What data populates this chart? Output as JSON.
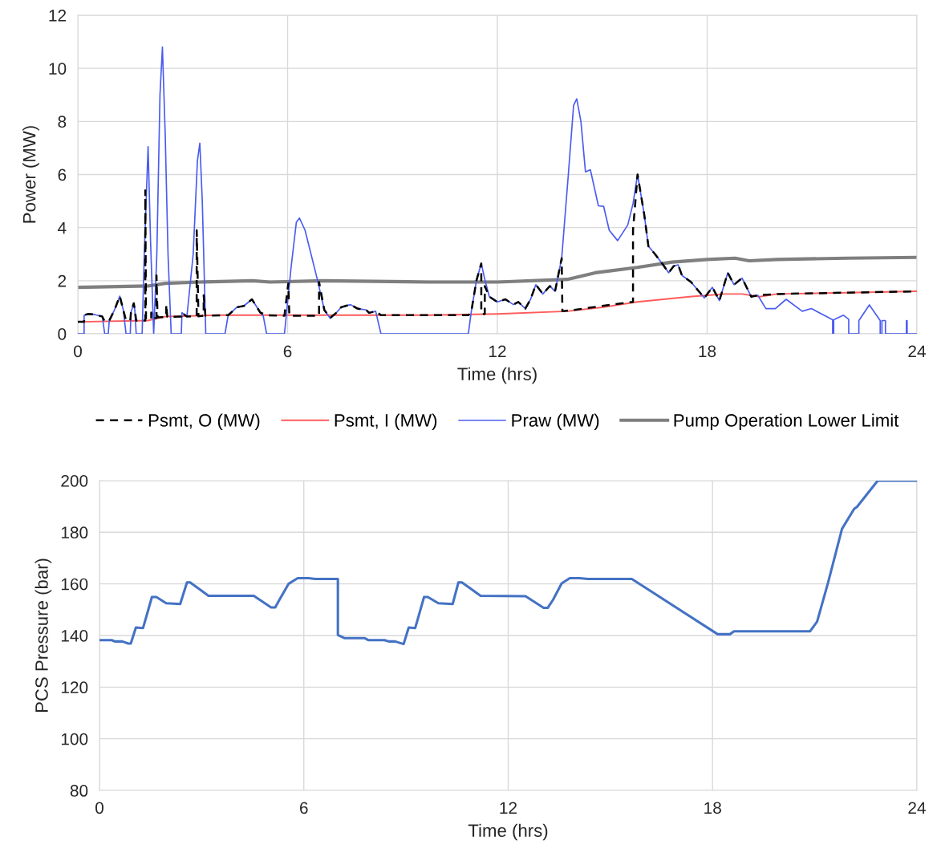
{
  "chart_data": [
    {
      "type": "line",
      "xlabel": "Time (hrs)",
      "ylabel": "Power (MW)",
      "xlim": [
        0,
        24
      ],
      "xticks": [
        0,
        6,
        12,
        18,
        24
      ],
      "ylim": [
        0,
        12
      ],
      "yticks": [
        0,
        2,
        4,
        6,
        8,
        10,
        12
      ],
      "grid": true,
      "legend": "bottom",
      "series": [
        {
          "name": "Psmt, O (MW)",
          "color": "#000000",
          "line_style": "dashed",
          "x": [
            0,
            0.18,
            0.18,
            0.3,
            0.5,
            0.7,
            0.77,
            0.87,
            0.9,
            1.05,
            1.2,
            1.3,
            1.38,
            1.5,
            1.52,
            1.6,
            1.63,
            1.67,
            1.84,
            1.93,
            1.93,
            1.95,
            2.1,
            2.1,
            2.12,
            2.25,
            2.25,
            2.28,
            2.53,
            2.53,
            2.56,
            2.96,
            2.98,
            3.05,
            3.12,
            3.4,
            3.4,
            3.45,
            3.6,
            3.6,
            3.65,
            4.21,
            4.3,
            4.55,
            4.75,
            4.98,
            5.1,
            5.22,
            5.4,
            5.91,
            6.02,
            6.05,
            6.9,
            6.9,
            7.05,
            7.22,
            7.4,
            7.53,
            7.8,
            8.0,
            8.25,
            8.33,
            8.52,
            8.67,
            11.17,
            11.25,
            11.4,
            11.54,
            11.54,
            11.64,
            11.64,
            11.77,
            12.0,
            12.23,
            12.46,
            12.6,
            12.8,
            12.95,
            13.1,
            13.3,
            13.5,
            13.65,
            13.84,
            13.86,
            14.2,
            15.0,
            15.88,
            15.88,
            16.01,
            16.2,
            16.32,
            16.51,
            16.74,
            16.9,
            17.04,
            17.17,
            17.28,
            17.54,
            17.92,
            18.15,
            18.35,
            18.59,
            18.77,
            19.0,
            19.26,
            19.45,
            20.0,
            22.0,
            24.0
          ],
          "values": [
            0.45,
            0.45,
            0.7,
            0.75,
            0.72,
            0.65,
            0.46,
            0.47,
            0.5,
            0.9,
            1.42,
            0.9,
            0.5,
            0.5,
            0.8,
            1.15,
            0.9,
            0.5,
            0.5,
            0.5,
            5.4,
            0.55,
            0.55,
            0.8,
            0.58,
            0.6,
            2.2,
            0.62,
            0.63,
            1.1,
            0.64,
            0.65,
            0.8,
            0.72,
            0.65,
            0.66,
            3.9,
            0.66,
            0.68,
            1.45,
            0.68,
            0.7,
            0.7,
            1.0,
            1.05,
            1.3,
            1.05,
            0.8,
            0.7,
            0.68,
            1.9,
            0.68,
            0.68,
            1.95,
            0.9,
            0.6,
            0.8,
            1.0,
            1.1,
            0.95,
            0.9,
            0.79,
            0.85,
            0.7,
            0.7,
            0.8,
            2.0,
            2.65,
            0.75,
            0.75,
            1.8,
            1.4,
            1.2,
            1.3,
            1.1,
            1.2,
            0.95,
            1.3,
            1.85,
            1.5,
            1.8,
            1.6,
            2.85,
            0.85,
            0.9,
            1.05,
            1.2,
            3.9,
            6.0,
            4.5,
            3.3,
            3.0,
            2.6,
            2.3,
            2.55,
            2.6,
            2.2,
            1.95,
            1.35,
            1.75,
            1.25,
            2.3,
            1.85,
            2.1,
            1.4,
            1.45,
            1.5,
            1.55,
            1.6
          ]
        },
        {
          "name": "Psmt, I (MW)",
          "color": "#ff5b5b",
          "x": [
            0,
            2,
            2.5,
            4,
            6,
            10,
            12,
            14,
            15,
            16,
            17.5,
            18.5,
            19,
            19.5,
            20,
            22,
            24
          ],
          "values": [
            0.45,
            0.5,
            0.65,
            0.7,
            0.7,
            0.7,
            0.75,
            0.85,
            1.0,
            1.2,
            1.4,
            1.5,
            1.5,
            1.4,
            1.5,
            1.55,
            1.6
          ]
        },
        {
          "name": "Praw (MW)",
          "color": "#4a5cf0",
          "x": [
            0,
            0.18,
            0.18,
            0.3,
            0.5,
            0.7,
            0.77,
            0.87,
            0.9,
            1.05,
            1.2,
            1.3,
            1.38,
            1.5,
            1.52,
            1.6,
            1.63,
            1.67,
            1.84,
            1.9,
            2.01,
            2.08,
            2.17,
            2.26,
            2.35,
            2.42,
            2.5,
            2.58,
            2.67,
            2.96,
            2.98,
            3.05,
            3.12,
            3.3,
            3.42,
            3.49,
            3.56,
            3.64,
            3.66,
            4.21,
            4.3,
            4.55,
            4.75,
            4.98,
            5.1,
            5.22,
            5.3,
            5.4,
            5.91,
            6.1,
            6.25,
            6.34,
            6.5,
            6.86,
            7.05,
            7.22,
            7.4,
            7.53,
            7.8,
            8.0,
            8.25,
            8.33,
            8.52,
            8.67,
            11.17,
            11.25,
            11.4,
            11.54,
            11.65,
            11.77,
            12.0,
            12.23,
            12.46,
            12.6,
            12.8,
            12.95,
            13.1,
            13.3,
            13.5,
            13.65,
            13.84,
            14.03,
            14.18,
            14.27,
            14.39,
            14.52,
            14.66,
            14.89,
            15.04,
            15.2,
            15.44,
            15.73,
            15.88,
            16.01,
            16.2,
            16.32,
            16.51,
            16.74,
            16.9,
            17.04,
            17.17,
            17.28,
            17.54,
            17.92,
            18.15,
            18.35,
            18.59,
            18.77,
            19.0,
            19.26,
            19.45,
            19.68,
            19.95,
            20.26,
            20.72,
            20.98,
            21.59,
            21.59,
            21.62,
            21.62,
            21.9,
            22.05,
            22.05,
            22.34,
            22.34,
            22.64,
            22.95,
            22.95,
            23.0,
            23.0,
            23.1,
            23.1,
            23.7,
            23.7,
            23.72,
            23.72,
            24.0
          ],
          "values": [
            0,
            0,
            0.7,
            0.75,
            0.72,
            0.65,
            0,
            0,
            0.5,
            0.9,
            1.42,
            0.9,
            0,
            0,
            0.8,
            1.15,
            0.9,
            0,
            0,
            3.0,
            7.05,
            3.5,
            0,
            3.0,
            9.0,
            10.8,
            7.5,
            3.0,
            0,
            0,
            0.8,
            0.72,
            0.65,
            3.0,
            6.5,
            7.18,
            5.0,
            1.0,
            0,
            0,
            0.7,
            1.0,
            1.05,
            1.3,
            1.05,
            0.8,
            0.7,
            0,
            0,
            2.5,
            4.2,
            4.36,
            3.9,
            2.0,
            0.9,
            0.58,
            0.8,
            1.0,
            1.1,
            0.95,
            0.9,
            0.79,
            0.85,
            0,
            0,
            0.8,
            2.0,
            2.65,
            2.0,
            1.4,
            1.2,
            1.3,
            1.1,
            1.2,
            0.95,
            1.3,
            1.85,
            1.5,
            1.8,
            1.6,
            2.85,
            6.0,
            8.6,
            8.85,
            8.0,
            6.1,
            6.18,
            4.82,
            4.8,
            3.9,
            3.51,
            4.1,
            4.9,
            6.0,
            4.5,
            3.3,
            3.0,
            2.6,
            2.3,
            2.55,
            2.6,
            2.2,
            1.95,
            1.35,
            1.75,
            1.25,
            2.3,
            1.85,
            2.1,
            1.4,
            1.45,
            0.95,
            0.95,
            1.3,
            0.85,
            0.95,
            0.53,
            0,
            0,
            0.53,
            0.7,
            0.55,
            0,
            0,
            0.5,
            1.09,
            0.5,
            0,
            0,
            0.5,
            0.5,
            0,
            0,
            0.5,
            0.5,
            0,
            0
          ]
        },
        {
          "name": "Pump Operation Lower Limit",
          "color": "#7f7f7f",
          "x": [
            0,
            2,
            2.5,
            3.5,
            5,
            5.5,
            7,
            10,
            12,
            14,
            14.8,
            16,
            17,
            18,
            18.8,
            19.2,
            20,
            22,
            24
          ],
          "values": [
            1.75,
            1.8,
            1.9,
            1.95,
            2.0,
            1.95,
            2.0,
            1.95,
            1.95,
            2.05,
            2.3,
            2.5,
            2.7,
            2.8,
            2.85,
            2.75,
            2.8,
            2.85,
            2.88
          ]
        }
      ]
    },
    {
      "type": "line",
      "xlabel": "Time (hrs)",
      "ylabel": "PCS Pressure (bar)",
      "xlim": [
        0,
        24
      ],
      "xticks": [
        0,
        6,
        12,
        18,
        24
      ],
      "ylim": [
        80,
        200
      ],
      "yticks": [
        80,
        100,
        120,
        140,
        160,
        180,
        200
      ],
      "grid": true,
      "series": [
        {
          "color": "#4472c4",
          "x": [
            0,
            0.36,
            0.45,
            0.67,
            0.85,
            0.92,
            1.07,
            1.28,
            1.54,
            1.67,
            1.96,
            2.37,
            2.57,
            2.66,
            3.2,
            4.53,
            5.04,
            5.16,
            5.27,
            5.55,
            5.82,
            6.14,
            6.33,
            7.0,
            7.0,
            7.19,
            7.78,
            7.9,
            8.37,
            8.49,
            8.68,
            8.93,
            9.08,
            9.27,
            9.53,
            9.64,
            9.95,
            10.37,
            10.54,
            10.64,
            11.19,
            12.51,
            13.04,
            13.16,
            13.32,
            13.57,
            13.81,
            14.09,
            14.34,
            15.63,
            18.15,
            18.51,
            18.63,
            20.86,
            21.07,
            21.39,
            21.8,
            22.16,
            22.24,
            22.85,
            24.0
          ],
          "values": [
            138.2,
            138.2,
            137.7,
            137.7,
            136.9,
            136.9,
            143.1,
            142.9,
            154.9,
            154.9,
            152.5,
            152.2,
            160.6,
            160.6,
            155.4,
            155.4,
            150.9,
            150.9,
            153.5,
            160.0,
            162.2,
            162.2,
            161.9,
            161.9,
            140.2,
            139.0,
            139.0,
            138.2,
            138.2,
            137.7,
            137.7,
            136.7,
            143.1,
            142.9,
            154.9,
            154.9,
            152.5,
            152.2,
            160.6,
            160.6,
            155.4,
            155.2,
            150.7,
            150.7,
            153.9,
            160.2,
            162.2,
            162.2,
            161.9,
            161.9,
            140.5,
            140.5,
            141.6,
            141.6,
            145.4,
            160.4,
            181.3,
            189.1,
            189.8,
            200.0,
            200.0
          ]
        }
      ]
    }
  ]
}
